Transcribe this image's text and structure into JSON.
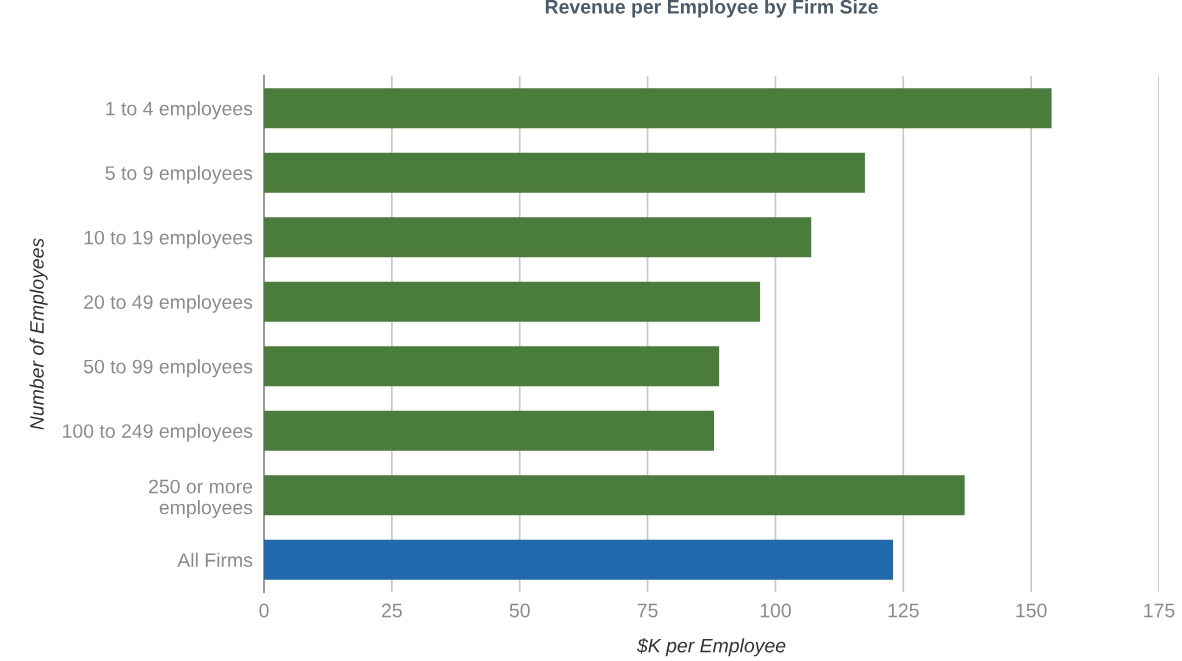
{
  "chart_data": {
    "type": "bar",
    "orientation": "horizontal",
    "title": "Revenue per Employee by Firm Size",
    "xlabel": "$K per Employee",
    "ylabel": "Number of Employees",
    "categories": [
      "1 to 4 employees",
      "5 to 9 employees",
      "10 to 19 employees",
      "20 to 49 employees",
      "50 to 99 employees",
      "100 to 249 employees",
      "250 or more\nemployees",
      "All Firms"
    ],
    "values": [
      154,
      117.5,
      107,
      97,
      89,
      88,
      137,
      123
    ],
    "colors": [
      "#4a7c3b",
      "#4a7c3b",
      "#4a7c3b",
      "#4a7c3b",
      "#4a7c3b",
      "#4a7c3b",
      "#4a7c3b",
      "#1f6aad"
    ],
    "xlim": [
      0,
      175
    ],
    "xticks": [
      0,
      25,
      50,
      75,
      100,
      125,
      150,
      175
    ],
    "grid": "x"
  }
}
